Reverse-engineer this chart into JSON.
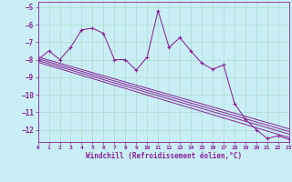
{
  "xlabel": "Windchill (Refroidissement éolien,°C)",
  "bg_color": "#caeef5",
  "grid_color": "#aaddcc",
  "line_color": "#882299",
  "xlim": [
    0,
    23
  ],
  "ylim": [
    -12.7,
    -4.7
  ],
  "xticks": [
    0,
    1,
    2,
    3,
    4,
    5,
    6,
    7,
    8,
    9,
    10,
    11,
    12,
    13,
    14,
    15,
    16,
    17,
    18,
    19,
    20,
    21,
    22,
    23
  ],
  "yticks": [
    -5,
    -6,
    -7,
    -8,
    -9,
    -10,
    -11,
    -12
  ],
  "main_x": [
    0,
    1,
    2,
    3,
    4,
    5,
    6,
    7,
    8,
    9,
    10,
    11,
    12,
    13,
    14,
    15,
    16,
    17,
    18,
    19,
    20,
    21,
    22,
    23
  ],
  "main_y": [
    -8.0,
    -7.5,
    -8.0,
    -7.3,
    -6.3,
    -6.2,
    -6.5,
    -8.0,
    -8.0,
    -8.6,
    -7.85,
    -5.2,
    -7.3,
    -6.75,
    -7.5,
    -8.2,
    -8.55,
    -8.3,
    -10.5,
    -11.4,
    -12.0,
    -12.5,
    -12.35,
    -12.55
  ],
  "reg_lines": [
    {
      "x": [
        0,
        23
      ],
      "y": [
        -7.85,
        -11.95
      ]
    },
    {
      "x": [
        0,
        23
      ],
      "y": [
        -7.95,
        -12.1
      ]
    },
    {
      "x": [
        0,
        23
      ],
      "y": [
        -8.05,
        -12.25
      ]
    },
    {
      "x": [
        0,
        23
      ],
      "y": [
        -8.15,
        -12.45
      ]
    }
  ]
}
